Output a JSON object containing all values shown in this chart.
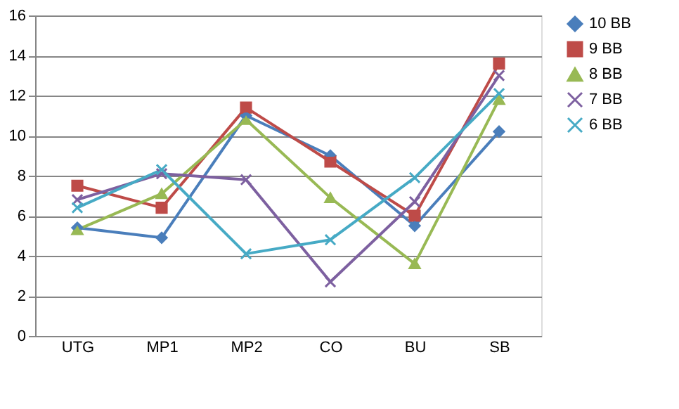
{
  "chart_data": {
    "type": "line",
    "categories": [
      "UTG",
      "MP1",
      "MP2",
      "CO",
      "BU",
      "SB"
    ],
    "series": [
      {
        "name": "10 BB",
        "color": "#4a7ebb",
        "marker": "diamond",
        "values": [
          5.4,
          4.9,
          11.0,
          9.0,
          5.5,
          10.2
        ]
      },
      {
        "name": "9 BB",
        "color": "#be4b48",
        "marker": "square",
        "values": [
          7.5,
          6.4,
          11.4,
          8.7,
          6.0,
          13.6
        ]
      },
      {
        "name": "8 BB",
        "color": "#98b954",
        "marker": "triangle",
        "values": [
          5.3,
          7.1,
          10.8,
          6.9,
          3.6,
          11.8
        ]
      },
      {
        "name": "7 BB",
        "color": "#7d60a0",
        "marker": "cross",
        "values": [
          6.8,
          8.1,
          7.8,
          2.7,
          6.7,
          13.0
        ]
      },
      {
        "name": "6 BB",
        "color": "#46aac5",
        "marker": "cross",
        "values": [
          6.4,
          8.3,
          4.1,
          4.8,
          7.9,
          12.1
        ]
      }
    ],
    "ylim": [
      0,
      16
    ],
    "yticks": [
      0,
      2,
      4,
      6,
      8,
      10,
      12,
      14,
      16
    ],
    "grid": "y",
    "legend": "right",
    "line_style": "solid"
  }
}
